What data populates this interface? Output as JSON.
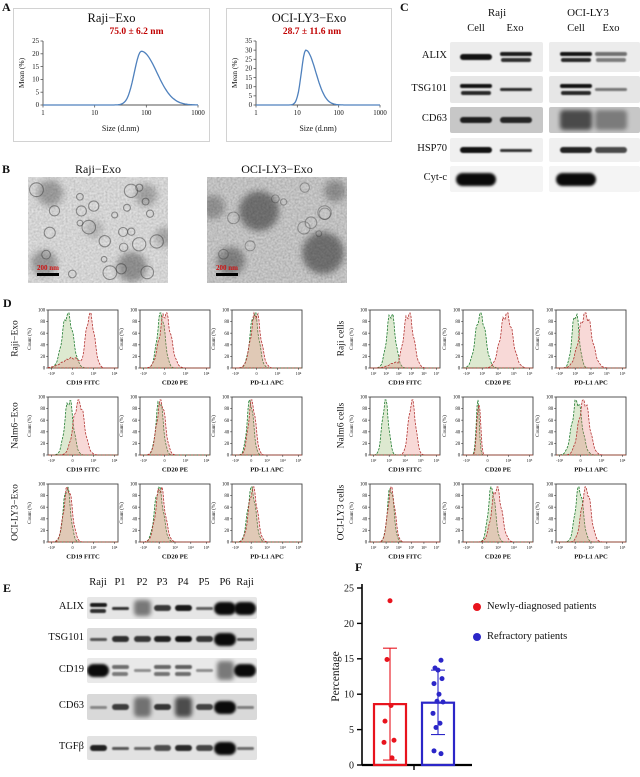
{
  "panels": {
    "A": {
      "label": "A"
    },
    "B": {
      "label": "B",
      "images": [
        {
          "title": "Raji−Exo",
          "scale_label": "200 nm"
        },
        {
          "title": "OCI-LY3−Exo",
          "scale_label": "200 nm"
        }
      ]
    },
    "C": {
      "label": "C",
      "groups": [
        {
          "name": "Raji",
          "lanes": [
            "Cell",
            "Exo"
          ]
        },
        {
          "name": "OCI-LY3",
          "lanes": [
            "Cell",
            "Exo"
          ]
        }
      ],
      "rows": [
        {
          "label": "ALIX",
          "bg": "#ececec",
          "bands": [
            [
              "b",
              0.95
            ],
            [
              "d",
              0.9
            ],
            [
              "d",
              0.95
            ],
            [
              "d",
              0.35
            ]
          ]
        },
        {
          "label": "TSG101",
          "bg": "#e6e6e6",
          "bands": [
            [
              "d",
              0.95
            ],
            [
              "t",
              0.8
            ],
            [
              "d",
              0.95
            ],
            [
              "t",
              0.3
            ]
          ]
        },
        {
          "label": "CD63",
          "bg": "#c7c7c7",
          "bands": [
            [
              "b",
              0.85
            ],
            [
              "b",
              0.8
            ],
            [
              "s",
              0.9
            ],
            [
              "s",
              0.25
            ]
          ]
        },
        {
          "label": "HSP70",
          "bg": "#f0f0f0",
          "bands": [
            [
              "b",
              0.95
            ],
            [
              "t",
              0.75
            ],
            [
              "b",
              0.85
            ],
            [
              "b",
              0.6
            ]
          ]
        },
        {
          "label": "Cyt-c",
          "bg": "#f4f4f4",
          "bands": [
            [
              "B",
              1
            ],
            [
              "-",
              0
            ],
            [
              "B",
              1
            ],
            [
              "-",
              0
            ]
          ]
        }
      ]
    },
    "D": {
      "label": "D"
    },
    "E": {
      "label": "E",
      "lane_headers": [
        "Raji",
        "P1",
        "P2",
        "P3",
        "P4",
        "P5",
        "P6",
        "Raji"
      ],
      "rows": [
        {
          "label": "ALIX",
          "bg": "#e6e6e6",
          "bands": [
            [
              "d",
              0.9
            ],
            [
              "t",
              0.75
            ],
            [
              "s",
              0.5
            ],
            [
              "b",
              0.7
            ],
            [
              "b",
              0.9
            ],
            [
              "t",
              0.45
            ],
            [
              "B",
              1
            ],
            [
              "B",
              0.95
            ]
          ]
        },
        {
          "label": "TSG101",
          "bg": "#dcdcdc",
          "bands": [
            [
              "t",
              0.5
            ],
            [
              "b",
              0.75
            ],
            [
              "b",
              0.7
            ],
            [
              "b",
              0.85
            ],
            [
              "b",
              0.95
            ],
            [
              "b",
              0.7
            ],
            [
              "B",
              0.95
            ],
            [
              "t",
              0.5
            ]
          ]
        },
        {
          "label": "CD19",
          "bg": "#e9e9e9",
          "bands": [
            [
              "B",
              0.95
            ],
            [
              "d",
              0.35
            ],
            [
              "t",
              0.15
            ],
            [
              "d",
              0.4
            ],
            [
              "d",
              0.45
            ],
            [
              "t",
              0.15
            ],
            [
              "s",
              0.5
            ],
            [
              "B",
              0.95
            ]
          ]
        },
        {
          "label": "CD63",
          "bg": "#d9d9d9",
          "bands": [
            [
              "t",
              0.15
            ],
            [
              "b",
              0.65
            ],
            [
              "s",
              0.5
            ],
            [
              "b",
              0.7
            ],
            [
              "s",
              0.95
            ],
            [
              "b",
              0.6
            ],
            [
              "B",
              0.95
            ],
            [
              "t",
              0.2
            ]
          ]
        },
        {
          "label": "TGFβ",
          "bg": "#e2e2e2",
          "bands": [
            [
              "b",
              0.85
            ],
            [
              "t",
              0.5
            ],
            [
              "t",
              0.4
            ],
            [
              "b",
              0.55
            ],
            [
              "b",
              0.8
            ],
            [
              "b",
              0.6
            ],
            [
              "B",
              0.95
            ],
            [
              "t",
              0.35
            ]
          ]
        }
      ]
    },
    "F": {
      "label": "F"
    }
  },
  "chart_data": [
    {
      "name": "dls_raji_exo",
      "type": "line",
      "title": "Raji−Exo",
      "annotation": "75.0 ± 6.2 nm",
      "mean_nm": 75.0,
      "sd_nm": 6.2,
      "xlabel": "Size (d.nm)",
      "ylabel": "Mean (%)",
      "xticks": [
        "1",
        "10",
        "100",
        "1000"
      ],
      "yticks": [
        0,
        5,
        10,
        15,
        20,
        25
      ],
      "ylim": [
        0,
        25
      ],
      "peak": {
        "center_dnm": 80,
        "height_pct": 21,
        "sig_l": 0.045,
        "sig_r": 0.1
      }
    },
    {
      "name": "dls_ocily3_exo",
      "type": "line",
      "title": "OCI-LY3−Exo",
      "annotation": "28.7 ± 11.6 nm",
      "mean_nm": 28.7,
      "sd_nm": 11.6,
      "xlabel": "Size (d.nm)",
      "ylabel": "Mean (%)",
      "xticks": [
        "1",
        "10",
        "100",
        "1000"
      ],
      "yticks": [
        0,
        5,
        10,
        15,
        20,
        25,
        30,
        35
      ],
      "ylim": [
        0,
        35
      ],
      "peak": {
        "center_dnm": 16,
        "height_pct": 30,
        "sig_l": 0.035,
        "sig_r": 0.08
      }
    },
    {
      "name": "flow_cytometry_panel_D",
      "type": "histogram-overlay",
      "ylabel": "Count (%)",
      "yticks": [
        0,
        20,
        40,
        60,
        80,
        100
      ],
      "series_colors": {
        "control_green": "#1e7a2e",
        "stained_red": "#b23432"
      },
      "groups": [
        {
          "rows": [
            {
              "label": "Raji−Exo",
              "plots": [
                {
                  "x": "CD19 FITC",
                  "t": [
                    "-10²",
                    "0",
                    "10³",
                    "10⁴"
                  ],
                  "g": [
                    0.28,
                    0.075
                  ],
                  "r": [
                    0.6,
                    0.06
                  ],
                  "sh": [
                    0.35,
                    0.14,
                    0.18
                  ]
                },
                {
                  "x": "CD20 PE",
                  "t": [
                    "-10¹",
                    "0",
                    "10³",
                    "10⁴"
                  ],
                  "g": [
                    0.3,
                    0.055
                  ],
                  "r": [
                    0.36,
                    0.08
                  ]
                },
                {
                  "x": "PD-L1 APC",
                  "t": [
                    "-10³",
                    "0",
                    "10³",
                    "10⁴"
                  ],
                  "g": [
                    0.32,
                    0.06
                  ],
                  "r": [
                    0.34,
                    0.07
                  ]
                }
              ]
            },
            {
              "label": "Nalm6−Exo",
              "plots": [
                {
                  "x": "CD19 FITC",
                  "t": [
                    "-10²",
                    "0",
                    "10³",
                    "10⁴"
                  ],
                  "g": [
                    0.3,
                    0.06
                  ],
                  "r": [
                    0.44,
                    0.075
                  ]
                },
                {
                  "x": "CD20 PE",
                  "t": [
                    "-10¹",
                    "0",
                    "10³",
                    "10⁴"
                  ],
                  "g": [
                    0.28,
                    0.05
                  ],
                  "r": [
                    0.3,
                    0.06
                  ]
                },
                {
                  "x": "PD-L1 APC",
                  "t": [
                    "-10²",
                    "0",
                    "10³",
                    "10⁴",
                    "10⁵"
                  ],
                  "g": [
                    0.26,
                    0.045
                  ],
                  "r": [
                    0.285,
                    0.05
                  ]
                }
              ]
            },
            {
              "label": "OCI-LY3−Exo",
              "plots": [
                {
                  "x": "CD19 FITC",
                  "t": [
                    "-10²",
                    "0",
                    "10³",
                    "10⁴"
                  ],
                  "g": [
                    0.27,
                    0.05
                  ],
                  "r": [
                    0.285,
                    0.06
                  ]
                },
                {
                  "x": "CD20 PE",
                  "t": [
                    "-10²",
                    "0",
                    "10³",
                    "10⁴",
                    "10⁵"
                  ],
                  "g": [
                    0.27,
                    0.06
                  ],
                  "r": [
                    0.29,
                    0.065
                  ]
                },
                {
                  "x": "PD-L1 APC",
                  "t": [
                    "-10²",
                    "0",
                    "10³",
                    "10⁴",
                    "10⁵"
                  ],
                  "g": [
                    0.28,
                    0.055
                  ],
                  "r": [
                    0.3,
                    0.06
                  ]
                }
              ]
            }
          ]
        },
        {
          "rows": [
            {
              "label": "Raji cells",
              "plots": [
                {
                  "x": "CD19 FITC",
                  "t": [
                    "10²",
                    "10³",
                    "10⁴",
                    "10⁵",
                    "10⁶",
                    "10⁷"
                  ],
                  "g": [
                    0.3,
                    0.06
                  ],
                  "r": [
                    0.55,
                    0.07
                  ],
                  "sh": [
                    0.38,
                    0.1,
                    0.1
                  ]
                },
                {
                  "x": "CD20 PE",
                  "t": [
                    "-10²",
                    "10³",
                    "10⁴",
                    "10⁵",
                    "10⁶"
                  ],
                  "g": [
                    0.25,
                    0.07
                  ],
                  "r": [
                    0.62,
                    0.085
                  ]
                },
                {
                  "x": "PD-L1 APC",
                  "t": [
                    "-10²",
                    "10³",
                    "10⁴",
                    "10⁵",
                    "10⁶"
                  ],
                  "g": [
                    0.28,
                    0.05
                  ],
                  "r": [
                    0.42,
                    0.09
                  ]
                }
              ]
            },
            {
              "label": "Nalm6 cells",
              "plots": [
                {
                  "x": "CD19 FITC",
                  "t": [
                    "10²",
                    "10³",
                    "10⁴",
                    "10⁵",
                    "10⁶"
                  ],
                  "g": [
                    0.22,
                    0.045
                  ],
                  "r": [
                    0.6,
                    0.05
                  ]
                },
                {
                  "x": "CD20 PE",
                  "t": [
                    "-10¹",
                    "0",
                    "10⁴",
                    "10⁵"
                  ],
                  "g": [
                    0.21,
                    0.022
                  ],
                  "r": [
                    0.225,
                    0.025
                  ]
                },
                {
                  "x": "PD-L1 APC",
                  "t": [
                    "-10²",
                    "0",
                    "10³",
                    "10⁴"
                  ],
                  "g": [
                    0.3,
                    0.07
                  ],
                  "r": [
                    0.4,
                    0.075
                  ]
                }
              ]
            },
            {
              "label": "OCI-LY3 cells",
              "plots": [
                {
                  "x": "CD19 FITC",
                  "t": [
                    "10²",
                    "10³",
                    "10⁴",
                    "10⁵",
                    "10⁶",
                    "10⁷"
                  ],
                  "g": [
                    0.295,
                    0.045
                  ],
                  "r": [
                    0.305,
                    0.05
                  ]
                },
                {
                  "x": "CD20 PE",
                  "t": [
                    "-10²",
                    "0",
                    "10³",
                    "10⁴",
                    "10⁵"
                  ],
                  "g": [
                    0.41,
                    0.05
                  ],
                  "r": [
                    0.48,
                    0.07
                  ]
                },
                {
                  "x": "PD-L1 APC",
                  "t": [
                    "-10²",
                    "0",
                    "10³",
                    "10⁴",
                    "10⁵"
                  ],
                  "g": [
                    0.33,
                    0.055
                  ],
                  "r": [
                    0.43,
                    0.065
                  ]
                }
              ]
            }
          ]
        }
      ]
    },
    {
      "name": "patient_pd_l1_percentage",
      "type": "bar-scatter",
      "ylabel": "Percentage",
      "ylim": [
        0,
        25
      ],
      "yticks": [
        0,
        5,
        10,
        15,
        20,
        25
      ],
      "series": [
        {
          "name": "Newly-diagnosed patients",
          "color": "#e8131d",
          "mean": 8.6,
          "err_low": 0.7,
          "err_high": 16.5,
          "points": [
            23.2,
            14.9,
            8.4,
            6.2,
            3.5,
            3.2,
            1.0
          ]
        },
        {
          "name": "Refractory patients",
          "color": "#2b26c8",
          "mean": 8.8,
          "err_low": 4.3,
          "err_high": 13.4,
          "points": [
            14.8,
            13.7,
            13.4,
            12.2,
            11.5,
            10.0,
            9.0,
            8.9,
            7.3,
            5.9,
            5.3,
            2.0,
            1.6
          ]
        }
      ]
    }
  ]
}
